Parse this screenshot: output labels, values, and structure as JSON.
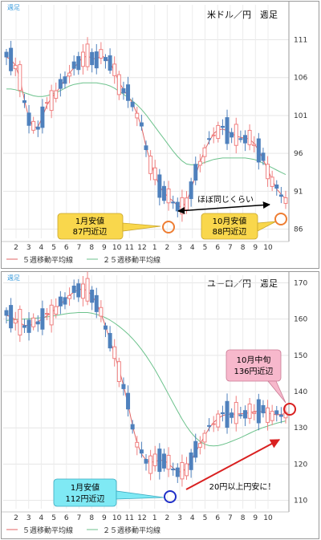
{
  "chart_data": [
    {
      "type": "candlestick",
      "tag": "週足",
      "title": "米ドル／円　週足",
      "x_tick_labels": [
        "2",
        "3",
        "4",
        "5",
        "6",
        "7",
        "8",
        "9",
        "10",
        "11",
        "12",
        "1",
        "2",
        "3",
        "4",
        "5",
        "6",
        "7",
        "8",
        "9",
        "10"
      ],
      "y_ticks": [
        86,
        91,
        96,
        101,
        106,
        111
      ],
      "ylim": [
        84.8,
        115.6
      ],
      "legend": [
        "５週移動平均線",
        "２５週移動平均線"
      ],
      "colors": {
        "up": "#f08080",
        "down": "#4f81bd",
        "ma5": "#e06666",
        "ma25": "#6cc28c"
      },
      "ma5": [
        108.7,
        108.4,
        107.6,
        105.9,
        103.0,
        100.6,
        99.4,
        99.5,
        100.8,
        102.4,
        103.3,
        104.0,
        104.8,
        105.8,
        106.6,
        107.3,
        108.0,
        108.7,
        108.8,
        108.6,
        108.4,
        108.9,
        108.6,
        108.0,
        106.8,
        105.4,
        104.4,
        103.6,
        102.6,
        101.2,
        99.5,
        96.9,
        94.8,
        93.1,
        91.7,
        90.8,
        90.2,
        89.7,
        89.1,
        88.9,
        89.6,
        91.2,
        93.1,
        94.9,
        96.4,
        97.6,
        98.6,
        99.1,
        99.2,
        99.0,
        98.6,
        98.3,
        98.1,
        98.0,
        97.9,
        97.3,
        96.4,
        95.2,
        93.9,
        92.5,
        91.3,
        90.6,
        90.0
      ],
      "ma25": [
        104.5,
        104.5,
        104.4,
        104.2,
        104.0,
        103.8,
        103.6,
        103.5,
        103.5,
        103.6,
        103.8,
        104.0,
        104.3,
        104.6,
        104.9,
        105.1,
        105.2,
        105.3,
        105.3,
        105.3,
        105.3,
        105.2,
        105.1,
        104.9,
        104.6,
        104.2,
        103.8,
        103.4,
        102.9,
        102.4,
        101.8,
        101.1,
        100.3,
        99.5,
        98.7,
        97.9,
        97.1,
        96.3,
        95.6,
        95.0,
        94.6,
        94.5,
        94.5,
        94.6,
        94.8,
        95.0,
        95.2,
        95.3,
        95.4,
        95.4,
        95.4,
        95.4,
        95.4,
        95.4,
        95.3,
        95.2,
        95.0,
        94.7,
        94.4,
        94.1,
        93.8,
        93.5,
        93.2
      ],
      "annotations": [
        {
          "text": [
            "1月安値",
            "87円近辺"
          ],
          "value": 87.0,
          "bg": "#f9d74c",
          "border": "#c9a62c"
        },
        {
          "text": [
            "10月安値",
            "88円近辺"
          ],
          "value": 88.0,
          "bg": "#f9d74c",
          "border": "#c9a62c"
        },
        {
          "text": [
            "ほぼ同じくらい"
          ]
        }
      ],
      "marker_color": "#ee7d32"
    },
    {
      "type": "candlestick",
      "tag": "週足",
      "title": "ユーロ／円　週足",
      "x_tick_labels": [
        "2",
        "3",
        "4",
        "5",
        "6",
        "7",
        "8",
        "9",
        "10",
        "11",
        "12",
        "1",
        "2",
        "3",
        "4",
        "5",
        "6",
        "7",
        "8",
        "9",
        "10"
      ],
      "y_ticks": [
        110,
        120,
        130,
        140,
        150,
        160,
        170
      ],
      "ylim": [
        107.7,
        172.1
      ],
      "legend": [
        "５週移動平均線",
        "２５週移動平均線"
      ],
      "colors": {
        "up": "#f08080",
        "down": "#4f81bd",
        "ma5": "#e06666",
        "ma25": "#6cc28c"
      },
      "ma5": [
        161.0,
        160.7,
        159.8,
        158.9,
        158.3,
        158.2,
        158.6,
        159.3,
        160.1,
        160.9,
        161.8,
        162.9,
        164.1,
        165.3,
        166.5,
        167.5,
        168.1,
        168.3,
        167.8,
        166.5,
        164.4,
        161.5,
        158.0,
        154.2,
        150.3,
        146.2,
        141.7,
        136.5,
        130.6,
        125.8,
        122.8,
        121.1,
        120.5,
        120.7,
        121.1,
        121.0,
        120.1,
        118.9,
        118.0,
        117.8,
        119.0,
        120.9,
        123.2,
        125.6,
        127.8,
        129.9,
        131.5,
        132.6,
        133.4,
        133.7,
        133.8,
        133.8,
        133.9,
        134.0,
        134.2,
        134.5,
        134.6,
        134.4,
        134.1,
        133.8,
        133.6,
        133.7,
        134.0
      ],
      "ma25": [
        159.6,
        159.8,
        159.9,
        160.0,
        160.0,
        160.1,
        160.2,
        160.3,
        160.4,
        160.6,
        160.8,
        161.0,
        161.2,
        161.4,
        161.6,
        161.7,
        161.8,
        161.8,
        161.8,
        161.6,
        161.3,
        160.9,
        160.4,
        159.7,
        158.9,
        158.0,
        157.0,
        155.9,
        154.6,
        153.2,
        151.6,
        149.9,
        148.0,
        146.0,
        143.8,
        141.5,
        139.2,
        136.9,
        134.6,
        132.4,
        130.4,
        128.7,
        127.3,
        126.2,
        125.5,
        125.1,
        125.0,
        125.1,
        125.4,
        125.8,
        126.3,
        126.8,
        127.3,
        127.9,
        128.5,
        129.1,
        129.6,
        130.1,
        130.5,
        130.9,
        131.3,
        131.6,
        131.9
      ],
      "annotations": [
        {
          "text": [
            "1月安値",
            "112円近辺"
          ],
          "value": 112.0,
          "bg": "#7fe9f4",
          "border": "#3aa9c0"
        },
        {
          "text": [
            "10月中旬",
            "136円近辺"
          ],
          "value": 136.0,
          "bg": "#f7b8cc",
          "border": "#c97a94"
        },
        {
          "text": [
            "20円以上円安に！"
          ]
        }
      ],
      "marker_colors": [
        "#1f2fc8",
        "#d92020"
      ]
    }
  ]
}
